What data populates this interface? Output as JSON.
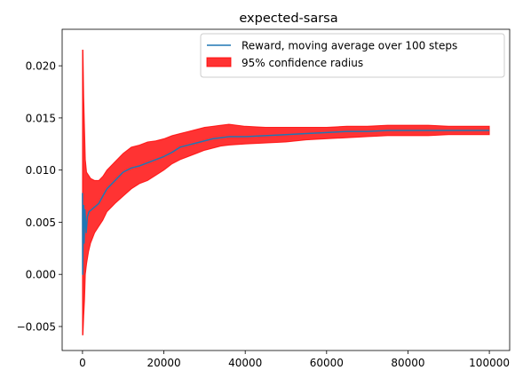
{
  "chart_data": {
    "type": "line",
    "title": "expected-sarsa",
    "xlabel": "",
    "ylabel": "",
    "xlim": [
      -5000,
      105000
    ],
    "ylim": [
      -0.0073,
      0.0235
    ],
    "x_ticks": [
      0,
      20000,
      40000,
      60000,
      80000,
      100000
    ],
    "x_tick_labels": [
      "0",
      "20000",
      "40000",
      "60000",
      "80000",
      "100000"
    ],
    "y_ticks": [
      -0.005,
      0.0,
      0.005,
      0.01,
      0.015,
      0.02
    ],
    "y_tick_labels": [
      "−0.005",
      "0.000",
      "0.005",
      "0.010",
      "0.015",
      "0.020"
    ],
    "grid": false,
    "legend_placement": "upper-right",
    "series": [
      {
        "name": "Reward, moving average over 100 steps",
        "kind": "line",
        "color": "#1f77b4",
        "points": [
          [
            0,
            0.0078
          ],
          [
            50,
            0.0
          ],
          [
            150,
            0.0035
          ],
          [
            300,
            0.0066
          ],
          [
            400,
            0.003
          ],
          [
            600,
            0.0062
          ],
          [
            900,
            0.004
          ],
          [
            1200,
            0.0055
          ],
          [
            1600,
            0.006
          ],
          [
            2500,
            0.0063
          ],
          [
            4000,
            0.0068
          ],
          [
            5000,
            0.0075
          ],
          [
            6000,
            0.0082
          ],
          [
            8000,
            0.009
          ],
          [
            10000,
            0.0098
          ],
          [
            12000,
            0.0102
          ],
          [
            14000,
            0.0104
          ],
          [
            16000,
            0.0107
          ],
          [
            18000,
            0.011
          ],
          [
            20000,
            0.0113
          ],
          [
            22000,
            0.0117
          ],
          [
            24000,
            0.0122
          ],
          [
            26000,
            0.0124
          ],
          [
            28000,
            0.0126
          ],
          [
            30000,
            0.0128
          ],
          [
            32000,
            0.013
          ],
          [
            34000,
            0.0131
          ],
          [
            36000,
            0.0132
          ],
          [
            40000,
            0.0132
          ],
          [
            45000,
            0.0133
          ],
          [
            50000,
            0.0134
          ],
          [
            55000,
            0.0135
          ],
          [
            60000,
            0.0136
          ],
          [
            65000,
            0.0137
          ],
          [
            70000,
            0.0137
          ],
          [
            75000,
            0.0138
          ],
          [
            80000,
            0.0138
          ],
          [
            85000,
            0.0138
          ],
          [
            90000,
            0.0138
          ],
          [
            95000,
            0.0138
          ],
          [
            100000,
            0.0138
          ]
        ]
      },
      {
        "name": "95% confidence radius",
        "kind": "band",
        "color": "#ff0000",
        "opacity": 0.8,
        "points": [
          [
            0,
            -0.0058,
            0.0215
          ],
          [
            120,
            -0.0058,
            0.0215
          ],
          [
            300,
            -0.004,
            0.017
          ],
          [
            500,
            -0.0025,
            0.014
          ],
          [
            700,
            0.0,
            0.011
          ],
          [
            1000,
            0.001,
            0.0098
          ],
          [
            1500,
            0.0022,
            0.0095
          ],
          [
            2000,
            0.003,
            0.0092
          ],
          [
            3000,
            0.004,
            0.009
          ],
          [
            4000,
            0.0046,
            0.009
          ],
          [
            5000,
            0.0052,
            0.0094
          ],
          [
            6000,
            0.006,
            0.01
          ],
          [
            8000,
            0.0068,
            0.0108
          ],
          [
            10000,
            0.0075,
            0.0116
          ],
          [
            12000,
            0.0082,
            0.0122
          ],
          [
            14000,
            0.0087,
            0.0124
          ],
          [
            16000,
            0.009,
            0.0127
          ],
          [
            18000,
            0.0095,
            0.0128
          ],
          [
            20000,
            0.01,
            0.013
          ],
          [
            22000,
            0.0106,
            0.0133
          ],
          [
            24000,
            0.011,
            0.0135
          ],
          [
            26000,
            0.0113,
            0.0137
          ],
          [
            28000,
            0.0116,
            0.0139
          ],
          [
            30000,
            0.0119,
            0.0141
          ],
          [
            32000,
            0.0121,
            0.0142
          ],
          [
            34000,
            0.0123,
            0.0143
          ],
          [
            36000,
            0.0124,
            0.0144
          ],
          [
            40000,
            0.0125,
            0.0142
          ],
          [
            45000,
            0.0126,
            0.0141
          ],
          [
            50000,
            0.0127,
            0.0141
          ],
          [
            55000,
            0.0129,
            0.0141
          ],
          [
            60000,
            0.013,
            0.0141
          ],
          [
            65000,
            0.0131,
            0.0142
          ],
          [
            70000,
            0.0132,
            0.0142
          ],
          [
            75000,
            0.0133,
            0.0143
          ],
          [
            80000,
            0.0133,
            0.0143
          ],
          [
            85000,
            0.0133,
            0.0143
          ],
          [
            90000,
            0.0134,
            0.0142
          ],
          [
            95000,
            0.0134,
            0.0142
          ],
          [
            100000,
            0.0134,
            0.0142
          ]
        ]
      }
    ]
  }
}
